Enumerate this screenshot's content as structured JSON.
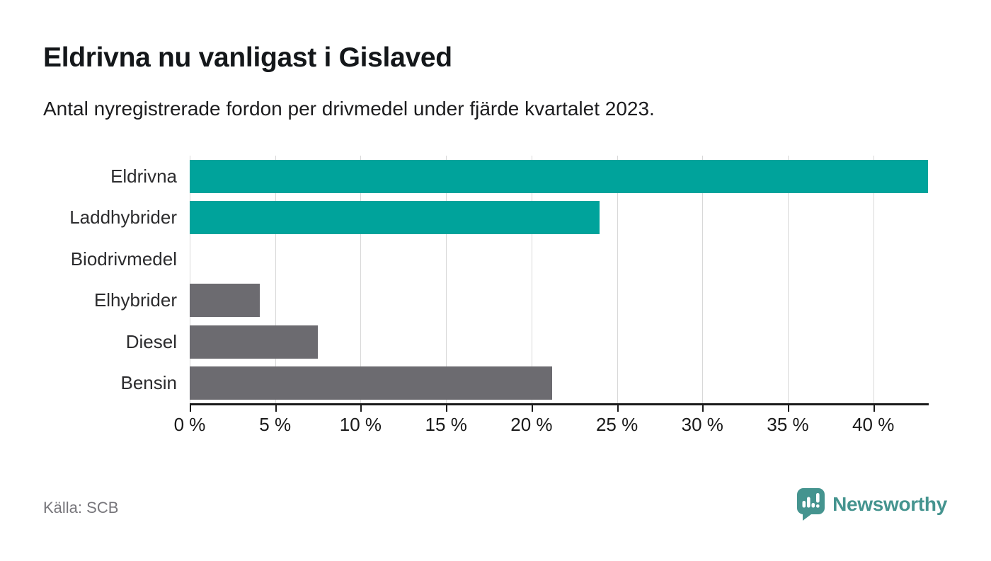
{
  "header": {
    "title": "Eldrivna nu vanligast i Gislaved",
    "subtitle": "Antal nyregistrerade fordon per drivmedel under fjärde kvartalet 2023."
  },
  "chart_data": {
    "type": "bar",
    "orientation": "horizontal",
    "categories": [
      "Eldrivna",
      "Laddhybrider",
      "Biodrivmedel",
      "Elhybrider",
      "Diesel",
      "Bensin"
    ],
    "values": [
      43.2,
      24.0,
      0,
      4.1,
      7.5,
      21.2
    ],
    "unit": "%",
    "bar_colors": [
      "#00A39B",
      "#00A39B",
      "#6C6B70",
      "#6C6B70",
      "#6C6B70",
      "#6C6B70"
    ],
    "xlim": [
      0,
      43.2
    ],
    "xticks": [
      0,
      5,
      10,
      15,
      20,
      25,
      30,
      35,
      40
    ],
    "xtick_labels": [
      "0 %",
      "5 %",
      "10 %",
      "15 %",
      "20 %",
      "25 %",
      "30 %",
      "35 %",
      "40 %"
    ],
    "grid": true,
    "legend": "none"
  },
  "footer": {
    "source": "Källa: SCB",
    "brand": "Newsworthy"
  },
  "colors": {
    "bar_teal": "#00A39B",
    "bar_gray": "#6C6B70",
    "gridline": "#D8D8D8",
    "axis": "#1A1A1A",
    "source_text": "#77767B",
    "brand_teal": "#45948F"
  },
  "icons": {
    "brand_icon": "newsworthy-speech-bubble-bar-chart-icon"
  }
}
